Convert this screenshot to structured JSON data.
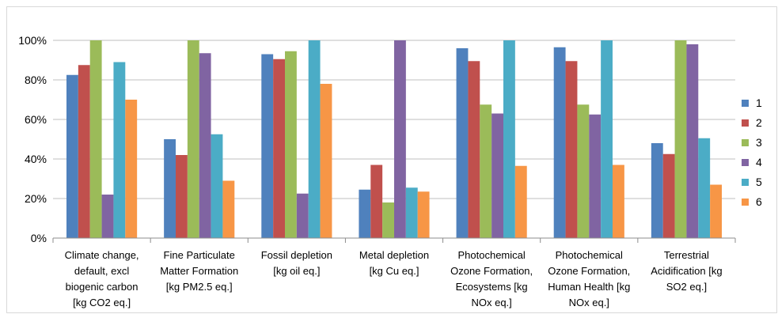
{
  "chart_data": {
    "type": "bar",
    "categories": [
      [
        "Climate change,",
        "default, excl",
        "biogenic carbon",
        "[kg CO2 eq.]"
      ],
      [
        "Fine Particulate",
        "Matter Formation",
        "[kg PM2.5 eq.]"
      ],
      [
        "Fossil depletion",
        "[kg oil eq.]"
      ],
      [
        "Metal depletion",
        "[kg Cu eq.]"
      ],
      [
        "Photochemical",
        "Ozone Formation,",
        "Ecosystems [kg",
        "NOx eq.]"
      ],
      [
        "Photochemical",
        "Ozone Formation,",
        "Human Health [kg",
        "NOx eq.]"
      ],
      [
        "Terrestrial",
        "Acidification [kg",
        "SO2 eq.]"
      ]
    ],
    "series": [
      {
        "name": "1",
        "color": "#4F81BD",
        "values": [
          82.5,
          50,
          93,
          24.5,
          96,
          96.5,
          48
        ]
      },
      {
        "name": "2",
        "color": "#C0504D",
        "values": [
          87.5,
          42,
          90.5,
          37,
          89.5,
          89.5,
          42.5
        ]
      },
      {
        "name": "3",
        "color": "#9BBB59",
        "values": [
          100,
          100,
          94.5,
          18,
          67.5,
          67.5,
          100
        ]
      },
      {
        "name": "4",
        "color": "#8064A2",
        "values": [
          22,
          93.5,
          22.5,
          100,
          63,
          62.5,
          98
        ]
      },
      {
        "name": "5",
        "color": "#4BACC6",
        "values": [
          89,
          52.5,
          100,
          25.5,
          100,
          100,
          50.5
        ]
      },
      {
        "name": "6",
        "color": "#F79646",
        "values": [
          70,
          29,
          78,
          23.5,
          36.5,
          37,
          27
        ]
      }
    ],
    "yticks": [
      "0%",
      "20%",
      "40%",
      "60%",
      "80%",
      "100%"
    ],
    "ylim": [
      0,
      100
    ],
    "grid": true,
    "legend_position": "right"
  }
}
